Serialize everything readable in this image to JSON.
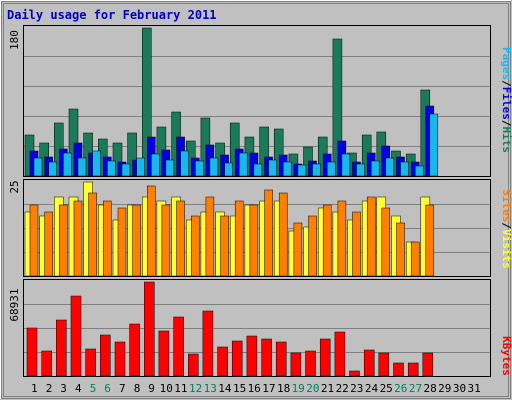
{
  "title": "Daily usage for February 2011",
  "chart_data": [
    {
      "type": "bar",
      "panel": "hits-files-pages",
      "ymax_label": "180",
      "ylim": [
        0,
        180
      ],
      "grid": true,
      "legend_placement": "right",
      "categories": [
        "1",
        "2",
        "3",
        "4",
        "5",
        "6",
        "7",
        "8",
        "9",
        "10",
        "11",
        "12",
        "13",
        "14",
        "15",
        "16",
        "17",
        "18",
        "19",
        "20",
        "21",
        "22",
        "23",
        "24",
        "25",
        "26",
        "27",
        "28",
        "29",
        "30",
        "31"
      ],
      "series": [
        {
          "name": "Hits",
          "color": "#1a7a5a",
          "values": [
            50,
            40,
            65,
            81,
            52,
            45,
            40,
            52,
            180,
            59,
            78,
            42,
            71,
            40,
            65,
            48,
            59,
            57,
            27,
            35,
            48,
            167,
            28,
            50,
            54,
            30,
            27,
            104,
            0,
            0,
            0
          ]
        },
        {
          "name": "Files",
          "color": "#0000e0",
          "values": [
            30,
            23,
            33,
            40,
            28,
            23,
            17,
            20,
            48,
            32,
            48,
            22,
            38,
            25,
            33,
            28,
            23,
            25,
            15,
            18,
            27,
            42,
            17,
            28,
            37,
            23,
            17,
            85,
            0,
            0,
            0
          ]
        },
        {
          "name": "Pages",
          "color": "#18b8ee",
          "values": [
            22,
            17,
            28,
            22,
            30,
            18,
            15,
            22,
            27,
            20,
            30,
            18,
            22,
            16,
            28,
            15,
            20,
            17,
            13,
            15,
            17,
            27,
            14,
            18,
            22,
            17,
            12,
            75,
            0,
            0,
            0
          ]
        }
      ],
      "separators": [
        "/",
        "/"
      ]
    },
    {
      "type": "bar",
      "panel": "visits-sites",
      "ymax_label": "25",
      "ylim": [
        0,
        25
      ],
      "grid": true,
      "legend_placement": "right",
      "categories": [
        "1",
        "2",
        "3",
        "4",
        "5",
        "6",
        "7",
        "8",
        "9",
        "10",
        "11",
        "12",
        "13",
        "14",
        "15",
        "16",
        "17",
        "18",
        "19",
        "20",
        "21",
        "22",
        "23",
        "24",
        "25",
        "26",
        "27",
        "28",
        "29",
        "30",
        "31"
      ],
      "series": [
        {
          "name": "Visits",
          "color": "#ffff33",
          "values": [
            17,
            16,
            21,
            21,
            25,
            19,
            15,
            19,
            21,
            20,
            21,
            15,
            17,
            17,
            16,
            19,
            20,
            20,
            12,
            13,
            18,
            17,
            15,
            20,
            21,
            16,
            9,
            21,
            0,
            0,
            0
          ]
        },
        {
          "name": "Sites",
          "color": "#ff8000",
          "values": [
            19,
            17,
            19,
            20,
            22,
            20,
            18,
            19,
            24,
            19,
            20,
            16,
            21,
            16,
            20,
            19,
            23,
            22,
            14,
            16,
            19,
            20,
            17,
            21,
            18,
            14,
            9,
            19,
            0,
            0,
            0
          ]
        }
      ],
      "separators": [
        "/"
      ]
    },
    {
      "type": "bar",
      "panel": "kbytes",
      "ymax_label": "68931",
      "ylim": [
        0,
        68931
      ],
      "grid": true,
      "legend_placement": "right",
      "categories": [
        "1",
        "2",
        "3",
        "4",
        "5",
        "6",
        "7",
        "8",
        "9",
        "10",
        "11",
        "12",
        "13",
        "14",
        "15",
        "16",
        "17",
        "18",
        "19",
        "20",
        "21",
        "22",
        "23",
        "24",
        "25",
        "26",
        "27",
        "28",
        "29",
        "30",
        "31"
      ],
      "series": [
        {
          "name": "KBytes",
          "color": "#ff0000",
          "values": [
            35000,
            18000,
            41000,
            59000,
            20000,
            30000,
            25000,
            38000,
            68931,
            33000,
            43000,
            16000,
            48000,
            21000,
            26000,
            29000,
            27000,
            25000,
            17000,
            18000,
            27000,
            32000,
            3500,
            19000,
            17000,
            9500,
            9500,
            17000,
            0,
            0,
            0
          ]
        }
      ]
    }
  ],
  "x_axis": {
    "labels": [
      "1",
      "2",
      "3",
      "4",
      "5",
      "6",
      "7",
      "8",
      "9",
      "10",
      "11",
      "12",
      "13",
      "14",
      "15",
      "16",
      "17",
      "18",
      "19",
      "20",
      "21",
      "22",
      "23",
      "24",
      "25",
      "26",
      "27",
      "28",
      "29",
      "30",
      "31"
    ],
    "weekend_days": [
      5,
      6,
      12,
      13,
      19,
      20,
      26,
      27
    ],
    "color_weekday": "#000000",
    "color_weekend": "#00805a"
  },
  "colors": {
    "title": "#0000c0",
    "background": "#c0c0c0",
    "grid": "#808080",
    "frame": "#ffffff"
  }
}
